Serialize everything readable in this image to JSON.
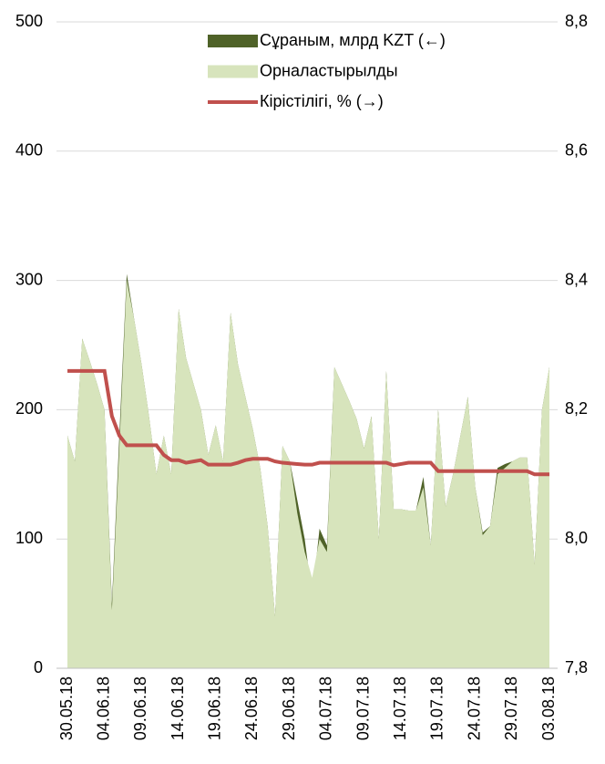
{
  "chart_data": {
    "type": "area-line",
    "categories": [
      "30.05.18",
      null,
      null,
      null,
      null,
      "04.06.18",
      null,
      null,
      null,
      null,
      "09.06.18",
      null,
      null,
      null,
      null,
      "14.06.18",
      null,
      null,
      null,
      null,
      "19.06.18",
      null,
      null,
      null,
      null,
      "24.06.18",
      null,
      null,
      null,
      null,
      "29.06.18",
      null,
      null,
      null,
      null,
      "04.07.18",
      null,
      null,
      null,
      null,
      "09.07.18",
      null,
      null,
      null,
      null,
      "14.07.18",
      null,
      null,
      null,
      null,
      "19.07.18",
      null,
      null,
      null,
      null,
      "24.07.18",
      null,
      null,
      null,
      null,
      "29.07.18",
      null,
      null,
      null,
      null,
      "03.08.18"
    ],
    "series": [
      {
        "name": "Сұраным, млрд KZT (←)",
        "color": "#4f6228",
        "kind": "area",
        "values": [
          180,
          160,
          255,
          238,
          220,
          200,
          50,
          180,
          305,
          270,
          235,
          195,
          150,
          180,
          150,
          278,
          240,
          220,
          200,
          165,
          188,
          160,
          275,
          235,
          210,
          185,
          155,
          110,
          40,
          172,
          160,
          130,
          100,
          55,
          108,
          95,
          233,
          220,
          207,
          193,
          170,
          195,
          100,
          230,
          123,
          123,
          122,
          122,
          148,
          95,
          200,
          125,
          150,
          180,
          210,
          140,
          105,
          110,
          155,
          158,
          160,
          163,
          163,
          80,
          200,
          233
        ]
      },
      {
        "name": "Орналастырылды",
        "color": "#d7e4bc",
        "kind": "area",
        "values": [
          180,
          160,
          255,
          238,
          220,
          200,
          45,
          170,
          300,
          270,
          235,
          195,
          150,
          180,
          150,
          278,
          240,
          220,
          200,
          165,
          188,
          160,
          275,
          235,
          210,
          185,
          155,
          110,
          40,
          172,
          160,
          120,
          90,
          70,
          100,
          90,
          233,
          220,
          207,
          193,
          170,
          195,
          100,
          230,
          123,
          123,
          122,
          122,
          140,
          95,
          200,
          125,
          150,
          180,
          210,
          140,
          103,
          110,
          150,
          155,
          160,
          163,
          163,
          80,
          200,
          233
        ]
      },
      {
        "name": "Кірістілігі, % (→)",
        "color": "#c0504d",
        "kind": "line",
        "axis": "y2",
        "values": [
          8.26,
          8.26,
          8.26,
          8.26,
          8.26,
          8.26,
          8.19,
          8.16,
          8.145,
          8.145,
          8.145,
          8.145,
          8.145,
          8.13,
          8.122,
          8.122,
          8.118,
          8.12,
          8.122,
          8.115,
          8.115,
          8.115,
          8.115,
          8.118,
          8.122,
          8.124,
          8.124,
          8.124,
          8.12,
          8.118,
          8.117,
          8.116,
          8.115,
          8.115,
          8.118,
          8.118,
          8.118,
          8.118,
          8.118,
          8.118,
          8.118,
          8.118,
          8.118,
          8.118,
          8.114,
          8.116,
          8.118,
          8.118,
          8.118,
          8.118,
          8.105,
          8.105,
          8.105,
          8.105,
          8.105,
          8.105,
          8.105,
          8.105,
          8.105,
          8.105,
          8.105,
          8.105,
          8.105,
          8.1,
          8.1,
          8.1
        ]
      }
    ],
    "ylim": [
      0,
      500
    ],
    "yticks": [
      0,
      100,
      200,
      300,
      400,
      500
    ],
    "y2lim": [
      7.8,
      8.8
    ],
    "y2ticks": [
      {
        "value": 7.8,
        "label": "7,8"
      },
      {
        "value": 8.0,
        "label": "8,0"
      },
      {
        "value": 8.2,
        "label": "8,2"
      },
      {
        "value": 8.4,
        "label": "8,4"
      },
      {
        "value": 8.6,
        "label": "8,6"
      },
      {
        "value": 8.8,
        "label": "8,8"
      }
    ],
    "grid": true,
    "legend": "top"
  }
}
